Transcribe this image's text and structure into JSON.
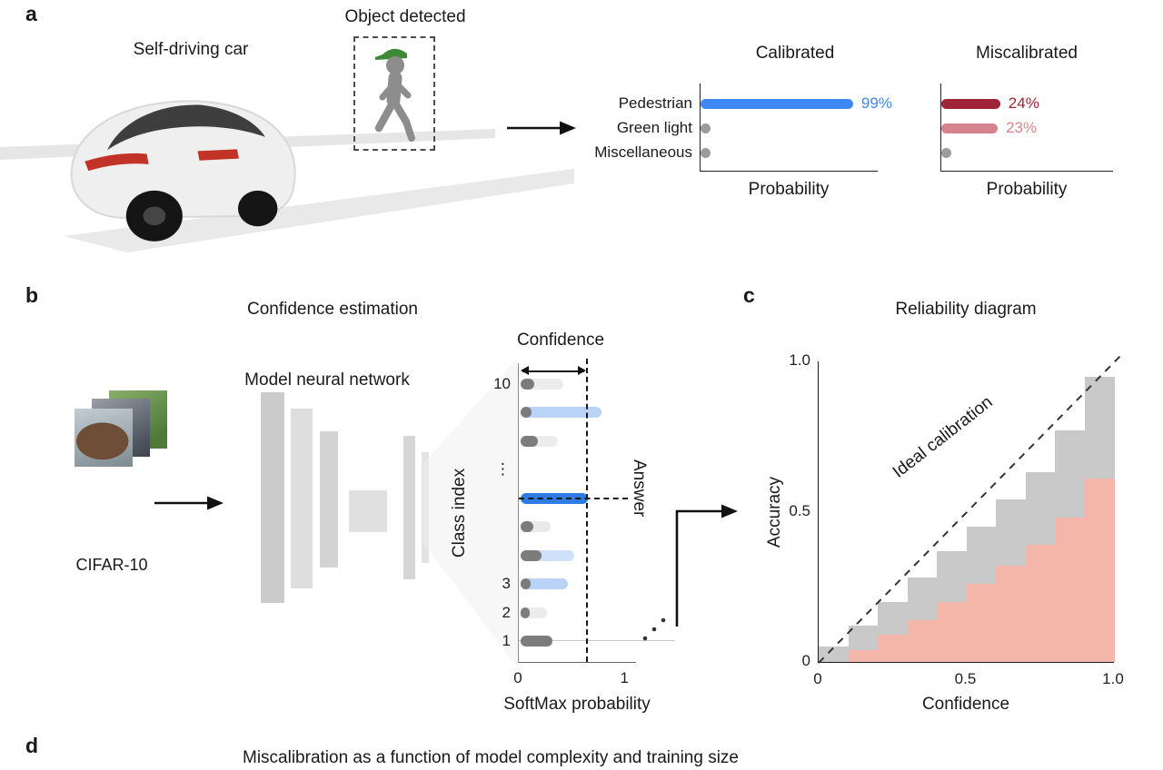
{
  "panels": {
    "a": {
      "tag": "a",
      "car_label": "Self-driving car",
      "object_label": "Object detected"
    },
    "b": {
      "tag": "b",
      "title": "Confidence estimation",
      "network_label": "Model neural network",
      "dataset_label": "CIFAR-10",
      "confidence_label": "Confidence",
      "answer_label": "Answer"
    },
    "c": {
      "tag": "c",
      "title": "Reliability diagram"
    },
    "d": {
      "tag": "d",
      "title": "Miscalibration as a function of model complexity and training size"
    }
  },
  "chart_data": [
    {
      "id": "calibrated",
      "type": "bar",
      "orientation": "horizontal",
      "title": "Calibrated",
      "xlabel": "Probability",
      "categories": [
        "Pedestrian",
        "Green light",
        "Miscellaneous"
      ],
      "values": [
        99,
        4,
        2
      ],
      "value_labels": [
        "99%",
        "",
        ""
      ],
      "bar_colors": [
        "#3f88f4",
        "#9b9b9b",
        "#9b9b9b"
      ],
      "value_label_colors": [
        "#3f88f4",
        "",
        ""
      ],
      "xlim": [
        0,
        115
      ]
    },
    {
      "id": "miscalibrated",
      "type": "bar",
      "orientation": "horizontal",
      "title": "Miscalibrated",
      "xlabel": "Probability",
      "categories": [
        "Pedestrian",
        "Green light",
        "Miscellaneous"
      ],
      "values": [
        24,
        23,
        4
      ],
      "value_labels": [
        "24%",
        "23%",
        ""
      ],
      "bar_colors": [
        "#a12337",
        "#d5848f",
        "#9b9b9b"
      ],
      "value_label_colors": [
        "#a12337",
        "#d5848f",
        ""
      ],
      "xlim": [
        0,
        70
      ]
    },
    {
      "id": "softmax",
      "type": "bar",
      "orientation": "horizontal",
      "xlabel": "SoftMax probability",
      "ylabel": "Class index",
      "xlim": [
        0,
        1.1
      ],
      "x_ticks": [
        "0",
        "1"
      ],
      "x_tick_pos": [
        0,
        1
      ],
      "confidence_value": 0.63,
      "rows": [
        {
          "tick": "10",
          "soft_value": 0.4,
          "soft_color": "#ececec",
          "top_value": 0.13,
          "top_color": "#7c7c7c"
        },
        {
          "tick": "",
          "soft_value": 0.76,
          "soft_color": "#b9d3f6",
          "top_value": 0.1,
          "top_color": "#7c7c7c"
        },
        {
          "tick": "",
          "soft_value": 0.35,
          "soft_color": "#ececec",
          "top_value": 0.16,
          "top_color": "#7c7c7c"
        },
        {
          "tick": "⋮",
          "gap": true
        },
        {
          "tick": "",
          "answer": true,
          "soft_value": 0.63,
          "soft_color": "#2e7ce1",
          "top_value": 0,
          "top_color": ""
        },
        {
          "tick": "",
          "soft_value": 0.28,
          "soft_color": "#e9e9e9",
          "top_value": 0.12,
          "top_color": "#7c7c7c"
        },
        {
          "tick": "",
          "soft_value": 0.5,
          "soft_color": "#cfe0f8",
          "top_value": 0.2,
          "top_color": "#7c7c7c"
        },
        {
          "tick": "3",
          "soft_value": 0.44,
          "soft_color": "#b9d3f6",
          "top_value": 0.09,
          "top_color": "#7c7c7c"
        },
        {
          "tick": "2",
          "soft_value": 0.25,
          "soft_color": "#ececec",
          "top_value": 0.07,
          "top_color": "#7c7c7c"
        },
        {
          "tick": "1",
          "soft_value": 0.17,
          "soft_color": "#dedede",
          "top_value": 0.3,
          "top_color": "#7c7c7c"
        }
      ]
    },
    {
      "id": "reliability",
      "type": "bar",
      "title": "Reliability diagram",
      "xlabel": "Confidence",
      "ylabel": "Accuracy",
      "ideal_label": "Ideal calibration",
      "xlim": [
        0,
        1
      ],
      "ylim": [
        0,
        1
      ],
      "x_ticks": [
        "0",
        "0.5",
        "1.0"
      ],
      "x_tick_pos": [
        0,
        0.5,
        1
      ],
      "y_ticks": [
        "0",
        "0.5",
        "1.0"
      ],
      "y_tick_pos": [
        0,
        0.5,
        1
      ],
      "series": [
        {
          "key": "gray-bars",
          "color": "#c9c9c9",
          "values": [
            0.05,
            0.12,
            0.2,
            0.28,
            0.37,
            0.45,
            0.54,
            0.63,
            0.77,
            0.95
          ]
        },
        {
          "key": "pink-bars",
          "color": "#f3b6a9",
          "values": [
            0.0,
            0.04,
            0.09,
            0.14,
            0.2,
            0.26,
            0.32,
            0.39,
            0.48,
            0.61
          ]
        }
      ]
    }
  ]
}
